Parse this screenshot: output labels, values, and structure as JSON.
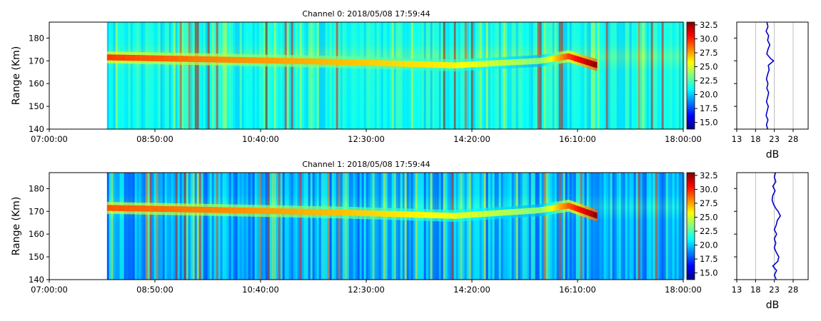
{
  "chart_data": [
    {
      "type": "heatmap",
      "title": "Channel 0: 2018/05/08 17:59:44",
      "ylabel": "Range (Km)",
      "xlim": [
        "07:00:00",
        "18:00:00"
      ],
      "ylim": [
        140,
        187
      ],
      "x_tick_labels": [
        "07:00:00",
        "08:50:00",
        "10:40:00",
        "12:30:00",
        "14:20:00",
        "16:10:00",
        "18:00:00"
      ],
      "y_ticks": [
        140,
        150,
        160,
        170,
        180
      ],
      "colorbar": {
        "range": [
          13.8,
          33
        ],
        "ticks": [
          15.0,
          17.5,
          20.0,
          22.5,
          25.0,
          27.5,
          30.0,
          32.5
        ],
        "tick_labels": [
          "15.0",
          "17.5",
          "20.0",
          "22.5",
          "25.0",
          "27.5",
          "30.0",
          "32.5"
        ],
        "colormap": "jet"
      },
      "data_start": "08:00:00",
      "background_db": 21.5,
      "echo_layer": [
        {
          "time": "08:00:00",
          "range_km": 171.5,
          "db": 29.5
        },
        {
          "time": "10:00:00",
          "range_km": 170.5,
          "db": 28.0
        },
        {
          "time": "12:00:00",
          "range_km": 169.5,
          "db": 27.0
        },
        {
          "time": "14:00:00",
          "range_km": 168.0,
          "db": 26.0
        },
        {
          "time": "15:30:00",
          "range_km": 170.0,
          "db": 23.5
        },
        {
          "time": "16:00:00",
          "range_km": 172.0,
          "db": 29.5
        },
        {
          "time": "16:30:00",
          "range_km": 168.0,
          "db": 33.0
        }
      ],
      "profile": {
        "xlabel": "dB",
        "xlim": [
          13,
          32
        ],
        "x_ticks": [
          13,
          18,
          23,
          28
        ],
        "x_tick_labels": [
          "13",
          "18",
          "23",
          "28"
        ],
        "points": [
          [
            21.2,
            140
          ],
          [
            20.9,
            142
          ],
          [
            21.3,
            144
          ],
          [
            20.8,
            146
          ],
          [
            21.1,
            148
          ],
          [
            21.4,
            150
          ],
          [
            20.9,
            152
          ],
          [
            21.2,
            154
          ],
          [
            21.5,
            156
          ],
          [
            21.0,
            158
          ],
          [
            21.3,
            160
          ],
          [
            20.9,
            162
          ],
          [
            21.2,
            164
          ],
          [
            21.6,
            166
          ],
          [
            21.4,
            168
          ],
          [
            22.8,
            170
          ],
          [
            22.0,
            171
          ],
          [
            21.0,
            173
          ],
          [
            21.3,
            175
          ],
          [
            21.8,
            177
          ],
          [
            21.2,
            179
          ],
          [
            21.5,
            181
          ],
          [
            20.8,
            183
          ],
          [
            21.3,
            185
          ],
          [
            21.0,
            187
          ]
        ]
      },
      "colors": [
        "#0000ff",
        "#0080ff",
        "#00d0ff",
        "#40ffb8",
        "#b8ff40",
        "#ffff00",
        "#ff8000",
        "#ff0000",
        "#800000"
      ]
    },
    {
      "type": "heatmap",
      "title": "Channel 1: 2018/05/08 17:59:44",
      "ylabel": "Range (Km)",
      "xlim": [
        "07:00:00",
        "18:00:00"
      ],
      "ylim": [
        140,
        187
      ],
      "x_tick_labels": [
        "07:00:00",
        "08:50:00",
        "10:40:00",
        "12:30:00",
        "14:20:00",
        "16:10:00",
        "18:00:00"
      ],
      "y_ticks": [
        140,
        150,
        160,
        170,
        180
      ],
      "colorbar": {
        "range": [
          13.8,
          33
        ],
        "ticks": [
          15.0,
          17.5,
          20.0,
          22.5,
          25.0,
          27.5,
          30.0,
          32.5
        ],
        "tick_labels": [
          "15.0",
          "17.5",
          "20.0",
          "22.5",
          "25.0",
          "27.5",
          "30.0",
          "32.5"
        ],
        "colormap": "jet"
      },
      "data_start": "08:00:00",
      "background_db": 20.0,
      "echo_layer": [
        {
          "time": "08:00:00",
          "range_km": 171.5,
          "db": 29.0
        },
        {
          "time": "10:00:00",
          "range_km": 170.5,
          "db": 28.0
        },
        {
          "time": "12:00:00",
          "range_km": 169.5,
          "db": 27.0
        },
        {
          "time": "14:00:00",
          "range_km": 168.0,
          "db": 25.5
        },
        {
          "time": "15:30:00",
          "range_km": 170.5,
          "db": 23.5
        },
        {
          "time": "16:00:00",
          "range_km": 172.5,
          "db": 29.0
        },
        {
          "time": "16:30:00",
          "range_km": 168.0,
          "db": 33.0
        }
      ],
      "profile": {
        "xlabel": "dB",
        "xlim": [
          13,
          32
        ],
        "x_ticks": [
          13,
          18,
          23,
          28
        ],
        "x_tick_labels": [
          "13",
          "18",
          "23",
          "28"
        ],
        "points": [
          [
            23.5,
            140
          ],
          [
            23.0,
            142
          ],
          [
            23.6,
            144
          ],
          [
            22.6,
            146
          ],
          [
            23.9,
            148
          ],
          [
            24.2,
            150
          ],
          [
            23.5,
            152
          ],
          [
            23.0,
            154
          ],
          [
            23.4,
            156
          ],
          [
            23.0,
            158
          ],
          [
            23.6,
            160
          ],
          [
            23.0,
            162
          ],
          [
            23.5,
            164
          ],
          [
            23.8,
            166
          ],
          [
            24.6,
            168
          ],
          [
            24.0,
            170
          ],
          [
            23.5,
            171
          ],
          [
            22.8,
            173
          ],
          [
            22.4,
            175
          ],
          [
            22.6,
            177
          ],
          [
            23.2,
            179
          ],
          [
            22.6,
            181
          ],
          [
            23.4,
            183
          ],
          [
            23.0,
            185
          ],
          [
            23.3,
            187
          ]
        ]
      },
      "colors": [
        "#0000ff",
        "#0080ff",
        "#00d0ff",
        "#40ffb8",
        "#b8ff40",
        "#ffff00",
        "#ff8000",
        "#ff0000",
        "#800000"
      ]
    }
  ]
}
